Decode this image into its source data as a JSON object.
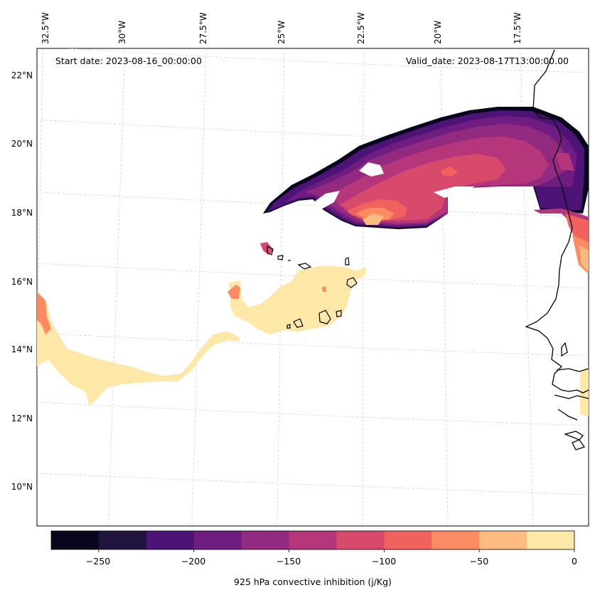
{
  "header": {
    "start_date": "Start date: 2023-08-16_00:00:00",
    "valid_date": "Valid_date: 2023-08-17T13:00:00.00"
  },
  "lon_labels": [
    "32.5°W",
    "30°W",
    "27.5°W",
    "25°W",
    "22.5°W",
    "20°W",
    "17.5°W"
  ],
  "lat_labels": [
    "22°N",
    "20°N",
    "18°N",
    "16°N",
    "14°N",
    "12°N",
    "10°N"
  ],
  "colorbar": {
    "label": "925 hPa convective inhibition (j/Kg)",
    "tick_labels": [
      "−250",
      "−200",
      "−150",
      "−100",
      "−50",
      "0"
    ],
    "levels": [
      -275,
      -250,
      -225,
      -200,
      -175,
      -150,
      -125,
      -100,
      -75,
      -50,
      -25,
      0
    ],
    "colors": [
      "#07061c",
      "#211540",
      "#4d1377",
      "#701d81",
      "#922a7f",
      "#b5367a",
      "#d84a6b",
      "#f1615d",
      "#fc8a62",
      "#febb81",
      "#fde8a8"
    ]
  },
  "map": {
    "extent": {
      "lon_min": -32.5,
      "lon_max": -16,
      "lat_min": 9,
      "lat_max": 22.7
    },
    "field": "925 hPa convective inhibition",
    "units": "j/Kg"
  }
}
